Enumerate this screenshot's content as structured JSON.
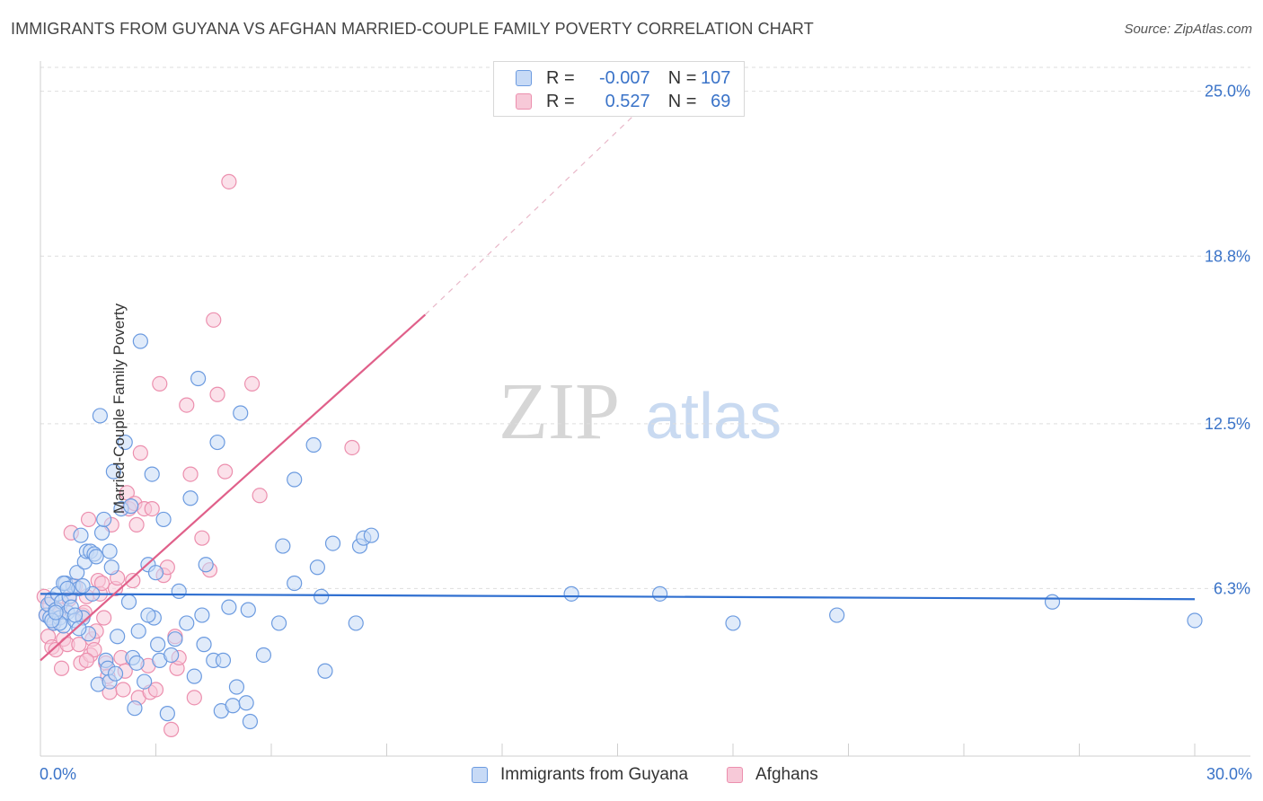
{
  "header": {
    "title": "IMMIGRANTS FROM GUYANA VS AFGHAN MARRIED-COUPLE FAMILY POVERTY CORRELATION CHART",
    "source": "Source: ZipAtlas.com"
  },
  "watermark": {
    "zip": "ZIP",
    "atlas": "atlas"
  },
  "legend_top": {
    "r_label": "R = ",
    "n_label": "N = ",
    "rows": [
      {
        "r": "-0.007",
        "n": "107"
      },
      {
        "r": "0.527",
        "n": "69"
      }
    ]
  },
  "chart_data": {
    "type": "scatter",
    "title": "IMMIGRANTS FROM GUYANA VS AFGHAN MARRIED-COUPLE FAMILY POVERTY CORRELATION CHART",
    "xlabel": "",
    "ylabel": "Married-Couple Family Poverty",
    "xlim": [
      0,
      30
    ],
    "ylim": [
      0,
      25.9
    ],
    "x_tick_labels": [
      "0.0%",
      "30.0%"
    ],
    "y_ticks": [
      6.3,
      12.5,
      18.8,
      25.0
    ],
    "y_tick_labels": [
      "6.3%",
      "12.5%",
      "18.8%",
      "25.0%"
    ],
    "grid": "horizontal dashed",
    "legend_position": "bottom-center",
    "colors": {
      "blue": "#6c9be0",
      "blue_fill": "#c7daf6",
      "blue_line": "#2f6fd0",
      "pink": "#ec8fae",
      "pink_fill": "#f7c9d8",
      "pink_line": "#e0608a",
      "tick_label": "#3a73c8"
    },
    "series": [
      {
        "name": "Immigrants from Guyana",
        "color": "#6c9be0",
        "r": -0.007,
        "n": 107,
        "trend": {
          "x": [
            0,
            30
          ],
          "y": [
            6.1,
            5.9
          ]
        },
        "points": [
          [
            0.15,
            5.3
          ],
          [
            0.2,
            5.7
          ],
          [
            0.25,
            5.2
          ],
          [
            0.3,
            5.9
          ],
          [
            0.35,
            5.0
          ],
          [
            0.4,
            5.5
          ],
          [
            0.45,
            6.1
          ],
          [
            0.5,
            5.2
          ],
          [
            0.55,
            5.8
          ],
          [
            0.6,
            4.9
          ],
          [
            0.65,
            6.5
          ],
          [
            0.7,
            5.4
          ],
          [
            0.75,
            6.0
          ],
          [
            0.8,
            5.6
          ],
          [
            0.85,
            6.4
          ],
          [
            0.9,
            5.1
          ],
          [
            0.95,
            6.9
          ],
          [
            1.0,
            6.3
          ],
          [
            1.05,
            8.3
          ],
          [
            1.1,
            5.2
          ],
          [
            1.15,
            7.3
          ],
          [
            1.2,
            7.7
          ],
          [
            1.25,
            4.6
          ],
          [
            1.3,
            7.7
          ],
          [
            1.35,
            6.1
          ],
          [
            1.4,
            7.6
          ],
          [
            1.45,
            7.5
          ],
          [
            1.5,
            2.7
          ],
          [
            1.55,
            12.8
          ],
          [
            1.6,
            8.4
          ],
          [
            1.65,
            8.9
          ],
          [
            1.7,
            3.6
          ],
          [
            1.75,
            3.3
          ],
          [
            1.8,
            2.8
          ],
          [
            1.85,
            7.1
          ],
          [
            1.9,
            10.7
          ],
          [
            1.95,
            3.1
          ],
          [
            2.0,
            4.5
          ],
          [
            2.1,
            9.3
          ],
          [
            2.2,
            11.8
          ],
          [
            2.3,
            5.8
          ],
          [
            2.35,
            9.4
          ],
          [
            2.4,
            3.7
          ],
          [
            2.45,
            1.8
          ],
          [
            2.5,
            3.5
          ],
          [
            2.6,
            15.6
          ],
          [
            2.7,
            2.8
          ],
          [
            2.8,
            7.2
          ],
          [
            2.9,
            10.6
          ],
          [
            2.95,
            5.2
          ],
          [
            3.0,
            6.9
          ],
          [
            3.05,
            4.2
          ],
          [
            3.1,
            3.6
          ],
          [
            3.2,
            8.9
          ],
          [
            3.3,
            1.6
          ],
          [
            3.4,
            3.8
          ],
          [
            3.5,
            4.4
          ],
          [
            3.6,
            6.2
          ],
          [
            3.8,
            5.0
          ],
          [
            3.9,
            9.7
          ],
          [
            4.0,
            3.0
          ],
          [
            4.1,
            14.2
          ],
          [
            4.2,
            5.3
          ],
          [
            4.25,
            4.2
          ],
          [
            4.3,
            7.2
          ],
          [
            4.5,
            3.6
          ],
          [
            4.6,
            11.8
          ],
          [
            4.7,
            1.7
          ],
          [
            4.75,
            3.6
          ],
          [
            4.9,
            5.6
          ],
          [
            5.0,
            1.9
          ],
          [
            5.1,
            2.6
          ],
          [
            5.2,
            12.9
          ],
          [
            5.35,
            2.0
          ],
          [
            5.4,
            5.5
          ],
          [
            5.45,
            1.3
          ],
          [
            5.8,
            3.8
          ],
          [
            6.2,
            5.0
          ],
          [
            6.3,
            7.9
          ],
          [
            6.6,
            10.4
          ],
          [
            6.6,
            6.5
          ],
          [
            7.1,
            11.7
          ],
          [
            7.2,
            7.1
          ],
          [
            7.4,
            3.2
          ],
          [
            7.6,
            8.0
          ],
          [
            7.3,
            6.0
          ],
          [
            8.2,
            5.0
          ],
          [
            8.3,
            7.9
          ],
          [
            8.4,
            8.2
          ],
          [
            8.6,
            8.3
          ],
          [
            13.8,
            6.1
          ],
          [
            16.1,
            6.1
          ],
          [
            18.0,
            5.0
          ],
          [
            20.7,
            5.3
          ],
          [
            26.3,
            5.8
          ],
          [
            30.0,
            5.1
          ],
          [
            0.5,
            5.0
          ],
          [
            0.6,
            6.5
          ],
          [
            0.9,
            5.3
          ],
          [
            1.1,
            6.4
          ],
          [
            0.3,
            5.1
          ],
          [
            0.4,
            5.4
          ],
          [
            1.8,
            7.7
          ],
          [
            2.8,
            5.3
          ],
          [
            0.7,
            6.3
          ],
          [
            1.0,
            4.8
          ],
          [
            2.55,
            4.7
          ]
        ]
      },
      {
        "name": "Afghans",
        "color": "#ec8fae",
        "r": 0.527,
        "n": 69,
        "trend": {
          "x": [
            0,
            10.0
          ],
          "y": [
            3.6,
            16.6
          ],
          "dash_to": {
            "x": 15.5,
            "y": 24.2
          }
        },
        "points": [
          [
            0.1,
            6.0
          ],
          [
            0.15,
            5.3
          ],
          [
            0.2,
            4.5
          ],
          [
            0.25,
            5.7
          ],
          [
            0.3,
            4.1
          ],
          [
            0.35,
            5.0
          ],
          [
            0.4,
            4.0
          ],
          [
            0.5,
            5.5
          ],
          [
            0.55,
            3.3
          ],
          [
            0.6,
            4.4
          ],
          [
            0.7,
            4.2
          ],
          [
            0.75,
            5.9
          ],
          [
            0.8,
            8.4
          ],
          [
            0.9,
            6.4
          ],
          [
            1.0,
            4.2
          ],
          [
            1.05,
            3.5
          ],
          [
            1.1,
            5.3
          ],
          [
            1.15,
            5.4
          ],
          [
            1.2,
            6.0
          ],
          [
            1.25,
            8.9
          ],
          [
            1.3,
            3.8
          ],
          [
            1.35,
            4.4
          ],
          [
            1.4,
            4.0
          ],
          [
            1.45,
            4.7
          ],
          [
            1.5,
            6.6
          ],
          [
            1.55,
            6.1
          ],
          [
            1.6,
            6.5
          ],
          [
            1.65,
            5.2
          ],
          [
            1.7,
            3.5
          ],
          [
            1.75,
            3.0
          ],
          [
            1.8,
            2.4
          ],
          [
            1.85,
            8.7
          ],
          [
            1.95,
            6.3
          ],
          [
            2.0,
            6.7
          ],
          [
            2.1,
            3.7
          ],
          [
            2.15,
            2.5
          ],
          [
            2.2,
            3.2
          ],
          [
            2.25,
            9.9
          ],
          [
            2.3,
            9.3
          ],
          [
            2.4,
            6.6
          ],
          [
            2.45,
            9.5
          ],
          [
            2.5,
            8.7
          ],
          [
            2.55,
            2.2
          ],
          [
            2.6,
            11.4
          ],
          [
            2.7,
            9.3
          ],
          [
            2.8,
            3.4
          ],
          [
            2.85,
            2.4
          ],
          [
            2.9,
            9.3
          ],
          [
            3.0,
            2.5
          ],
          [
            3.1,
            14.0
          ],
          [
            3.2,
            6.8
          ],
          [
            3.3,
            7.1
          ],
          [
            3.4,
            1.0
          ],
          [
            3.5,
            4.5
          ],
          [
            3.55,
            3.3
          ],
          [
            3.6,
            3.7
          ],
          [
            3.8,
            13.2
          ],
          [
            3.9,
            10.6
          ],
          [
            4.0,
            2.2
          ],
          [
            4.2,
            8.2
          ],
          [
            4.4,
            7.0
          ],
          [
            4.5,
            16.4
          ],
          [
            4.6,
            13.6
          ],
          [
            4.8,
            10.7
          ],
          [
            4.9,
            21.6
          ],
          [
            5.5,
            14.0
          ],
          [
            5.7,
            9.8
          ],
          [
            8.1,
            11.6
          ],
          [
            1.2,
            3.6
          ]
        ]
      }
    ]
  },
  "bottom_legend": [
    {
      "label": "Immigrants from Guyana"
    },
    {
      "label": "Afghans"
    }
  ]
}
